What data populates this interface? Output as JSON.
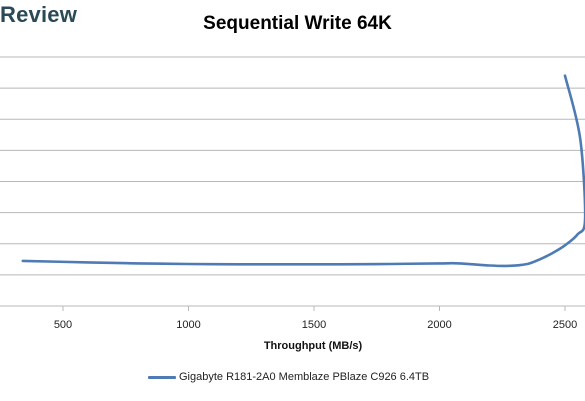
{
  "brand": {
    "text": "Review"
  },
  "colors": {
    "series": "#4f7bb4",
    "grid": "#b8b8b8",
    "brand": "#2b4a57"
  },
  "chart_data": {
    "type": "line",
    "title": "Sequential Write 64K",
    "xlabel": "Throughput (MB/s)",
    "ylabel": "",
    "xlim": [
      250,
      2590
    ],
    "ylim": [
      0,
      8
    ],
    "grid": true,
    "legend_position": "bottom",
    "x_ticks": [
      "500",
      "1000",
      "1500",
      "2000",
      "2500"
    ],
    "x_tick_values": [
      500,
      1000,
      1500,
      2000,
      2500
    ],
    "y_gridlines": [
      1,
      2,
      3,
      4,
      5,
      6,
      7,
      8
    ],
    "series": [
      {
        "name": "Gigabyte R181-2A0 Memblaze PBlaze C926 6.4TB",
        "x": [
          340,
          600,
          800,
          1000,
          1200,
          1400,
          1600,
          1800,
          2000,
          2080,
          2200,
          2280,
          2350,
          2400,
          2450,
          2500,
          2550,
          2580,
          2560,
          2500
        ],
        "y": [
          1.45,
          1.4,
          1.37,
          1.35,
          1.34,
          1.34,
          1.34,
          1.35,
          1.37,
          1.37,
          1.3,
          1.29,
          1.35,
          1.5,
          1.7,
          1.95,
          2.3,
          2.8,
          5.4,
          7.4
        ]
      }
    ]
  }
}
